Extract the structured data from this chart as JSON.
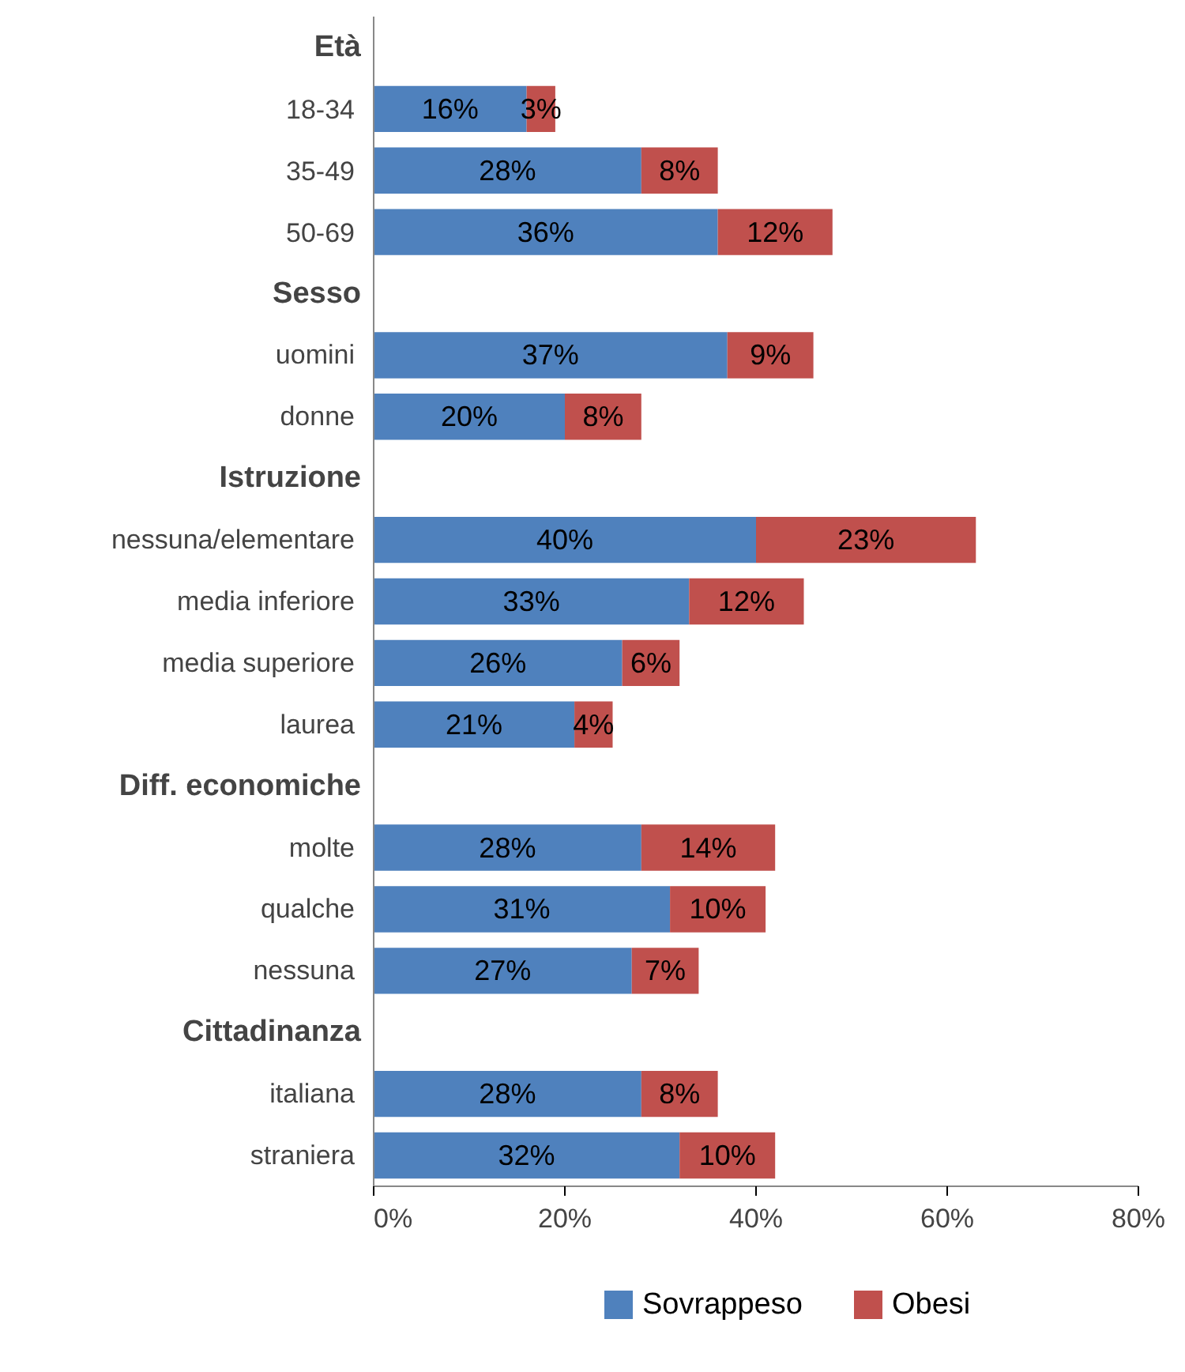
{
  "chart_data": {
    "type": "bar",
    "orientation": "horizontal",
    "stacked": true,
    "categories": [
      "Età",
      "18-34",
      "35-49",
      "50-69",
      "Sesso",
      "uomini",
      "donne",
      "Istruzione",
      "nessuna/elementare",
      "media inferiore",
      "media superiore",
      "laurea",
      "Diff. economiche",
      "molte",
      "qualche",
      "nessuna",
      "Cittadinanza",
      "italiana",
      "straniera"
    ],
    "series": [
      {
        "name": "Sovrappeso",
        "color": "#4f81bd",
        "values": [
          null,
          16,
          28,
          36,
          null,
          37,
          20,
          null,
          40,
          33,
          26,
          21,
          null,
          28,
          31,
          27,
          null,
          28,
          32
        ],
        "value_labels": [
          null,
          "16%",
          "28%",
          "36%",
          null,
          "37%",
          "20%",
          null,
          "40%",
          "33%",
          "26%",
          "21%",
          null,
          "28%",
          "31%",
          "27%",
          null,
          "28%",
          "32%"
        ]
      },
      {
        "name": "Obesi",
        "color": "#c0504d",
        "values": [
          null,
          3,
          8,
          12,
          null,
          9,
          8,
          null,
          23,
          12,
          6,
          4,
          null,
          14,
          10,
          7,
          null,
          8,
          10
        ],
        "value_labels": [
          null,
          "3%",
          "8%",
          "12%",
          null,
          "9%",
          "8%",
          null,
          "23%",
          "12%",
          "6%",
          "4%",
          null,
          "14%",
          "10%",
          "7%",
          null,
          "8%",
          "10%"
        ]
      }
    ],
    "xlim": [
      0,
      80
    ],
    "xticks": [
      {
        "value": 0,
        "label": "0%"
      },
      {
        "value": 20,
        "label": "20%"
      },
      {
        "value": 40,
        "label": "40%"
      },
      {
        "value": 60,
        "label": "60%"
      },
      {
        "value": 80,
        "label": "80%"
      }
    ],
    "grid": false,
    "legend": "bottom"
  }
}
